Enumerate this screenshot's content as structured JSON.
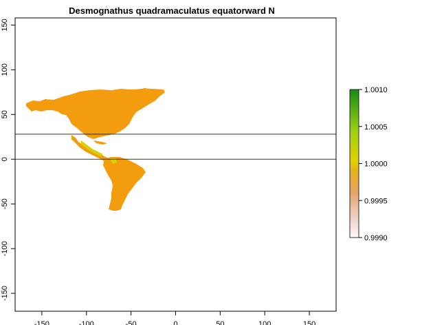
{
  "map": {
    "title": "Desmognathus quadramaculatus equatorward N",
    "x_ticks": [
      "-150",
      "-100",
      "-50",
      "0",
      "50",
      "100",
      "150"
    ],
    "x_tick_values": [
      -150,
      -100,
      -50,
      0,
      50,
      100,
      150
    ],
    "y_ticks": [
      "150",
      "100",
      "50",
      "0",
      "-50",
      "-100",
      "-150"
    ],
    "y_tick_values": [
      150,
      100,
      50,
      0,
      -50,
      -100,
      -150
    ],
    "xlim": [
      -180,
      180
    ],
    "ylim": [
      -170,
      158
    ],
    "reference_lines_lat": [
      28,
      0
    ],
    "land_color": "#f39c0d",
    "highlight_color": "#d8d000",
    "legend": {
      "labels": [
        "1.0010",
        "1.0005",
        "1.0000",
        "0.9995",
        "0.9990"
      ],
      "values": [
        1.001,
        1.0005,
        1.0,
        0.9995,
        0.999
      ],
      "colors": [
        "#1a8c1a",
        "#6fc21e",
        "#e0d000",
        "#e49a48",
        "#f0dcd8",
        "#fff8f8"
      ]
    }
  }
}
